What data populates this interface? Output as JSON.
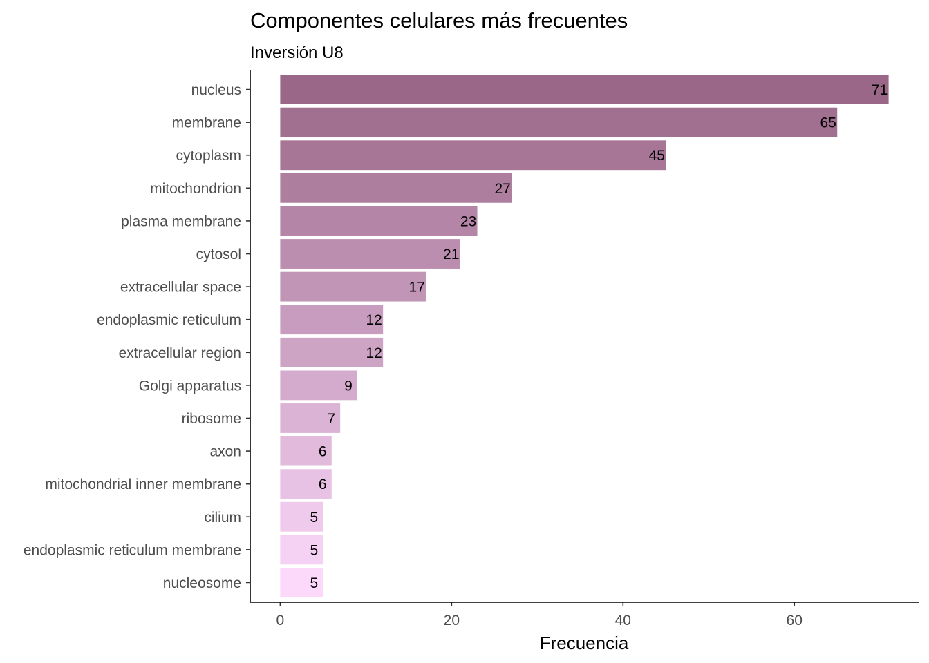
{
  "chart_data": {
    "type": "bar",
    "orientation": "horizontal",
    "title": "Componentes celulares más frecuentes",
    "subtitle": "Inversión U8",
    "xlabel": "Frecuencia",
    "ylabel": "",
    "xlim": [
      -3.5,
      74.5
    ],
    "xticks": [
      0,
      20,
      40,
      60
    ],
    "grid": false,
    "legend": "none",
    "categories": [
      "nucleus",
      "membrane",
      "cytoplasm",
      "mitochondrion",
      "plasma membrane",
      "cytosol",
      "extracellular space",
      "endoplasmic reticulum",
      "extracellular region",
      "Golgi apparatus",
      "ribosome",
      "axon",
      "mitochondrial inner membrane",
      "cilium",
      "endoplasmic reticulum membrane",
      "nucleosome"
    ],
    "values": [
      71,
      65,
      45,
      27,
      23,
      21,
      17,
      12,
      12,
      9,
      7,
      6,
      6,
      5,
      5,
      5
    ],
    "data_labels": [
      "71",
      "65",
      "45",
      "27",
      "23",
      "21",
      "17",
      "12",
      "12",
      "9",
      "7",
      "6",
      "6",
      "5",
      "5",
      "5"
    ],
    "colors": {
      "start": "#9a6788",
      "end": "#fcd9fb"
    }
  }
}
